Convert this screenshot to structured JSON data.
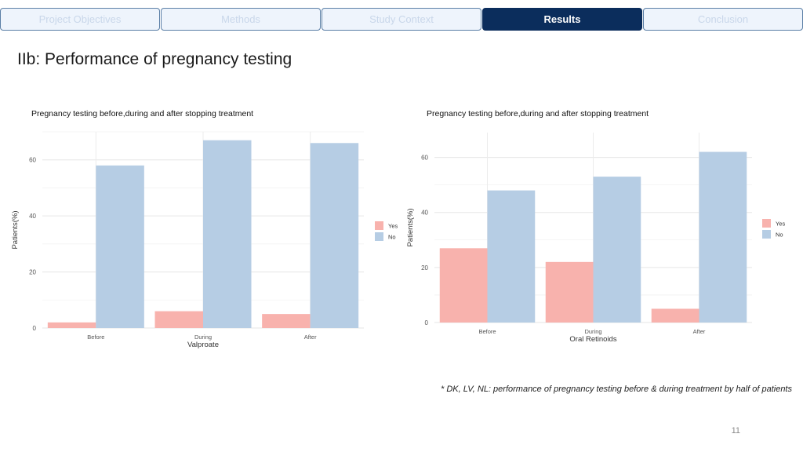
{
  "tabs": [
    {
      "label": "Project Objectives",
      "active": false
    },
    {
      "label": "Methods",
      "active": false
    },
    {
      "label": "Study Context",
      "active": false
    },
    {
      "label": "Results",
      "active": true
    },
    {
      "label": "Conclusion",
      "active": false
    }
  ],
  "page_title": "IIb: Performance of pregnancy testing",
  "footnote": "* DK, LV, NL: performance of pregnancy testing before & during treatment by half of patients",
  "page_number": "11",
  "colors": {
    "yes": "#f8b2ad",
    "no": "#b6cde4",
    "accent": "#0b2d5c"
  },
  "chart_data": [
    {
      "type": "bar",
      "title": "Pregnancy testing before,during and after stopping treatment",
      "xlabel": "Valproate",
      "ylabel": "Patients(%)",
      "categories": [
        "Before",
        "During",
        "After"
      ],
      "series": [
        {
          "name": "Yes",
          "values": [
            2,
            6,
            5
          ]
        },
        {
          "name": "No",
          "values": [
            58,
            67,
            66
          ]
        }
      ],
      "yticks": [
        0,
        20,
        40,
        60
      ],
      "ylim": [
        0,
        70
      ],
      "grid": true,
      "legend": "right"
    },
    {
      "type": "bar",
      "title": "Pregnancy testing before,during and after stopping treatment",
      "xlabel": "Oral Retinoids",
      "ylabel": "Patients(%)",
      "categories": [
        "Before",
        "During",
        "After"
      ],
      "series": [
        {
          "name": "Yes",
          "values": [
            27,
            22,
            5
          ]
        },
        {
          "name": "No",
          "values": [
            48,
            53,
            62
          ]
        }
      ],
      "yticks": [
        0,
        20,
        40,
        60
      ],
      "ylim": [
        0,
        69
      ],
      "grid": true,
      "legend": "right"
    }
  ]
}
